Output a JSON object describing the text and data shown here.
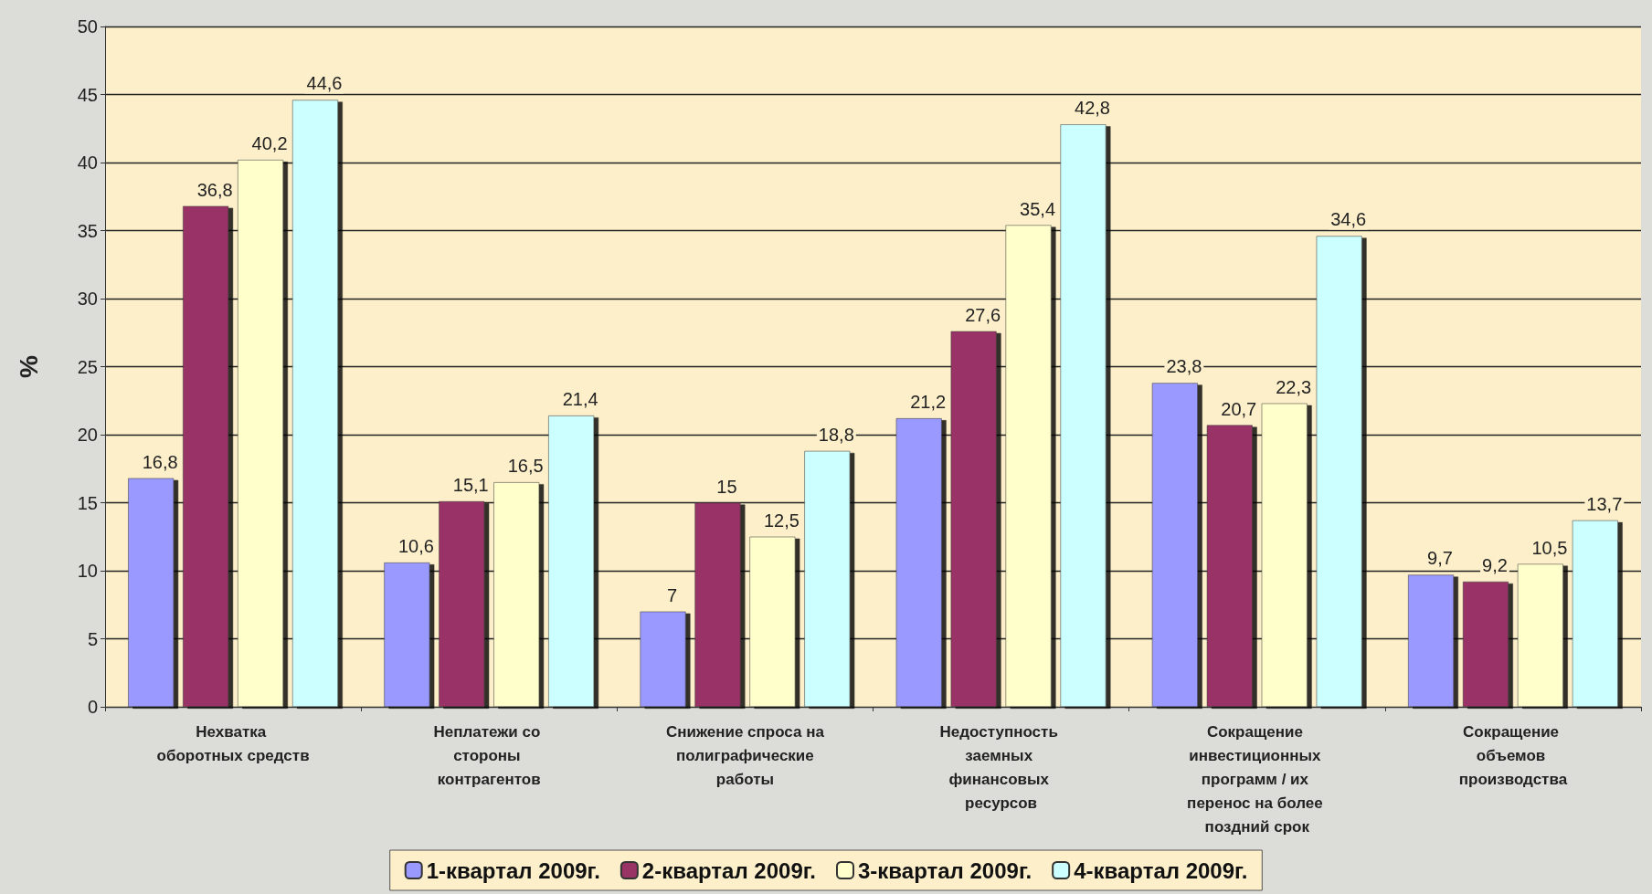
{
  "chart_data": {
    "type": "bar",
    "ylabel": "%",
    "categories": [
      "Нехватка оборотных средств",
      "Неплатежи со стороны контрагентов",
      "Снижение спроса на полиграфические работы",
      "Недоступность заемных финансовых ресурсов",
      "Сокращение инвестиционных программ / их перенос на более поздний срок",
      "Сокращение объемов производства"
    ],
    "series": [
      {
        "name": "1-квартал 2009г.",
        "color": "#9999ff",
        "values": [
          16.8,
          10.6,
          7,
          21.2,
          23.8,
          9.7
        ],
        "value_labels": [
          "16,8",
          "10,6",
          "7",
          "21,2",
          "23,8",
          "9,7"
        ]
      },
      {
        "name": "2-квартал 2009г.",
        "color": "#993366",
        "values": [
          36.8,
          15.1,
          15,
          27.6,
          20.7,
          9.2
        ],
        "value_labels": [
          "36,8",
          "15,1",
          "15",
          "27,6",
          "20,7",
          "9,2"
        ]
      },
      {
        "name": "3-квартал 2009г.",
        "color": "#ffffcc",
        "values": [
          40.2,
          16.5,
          12.5,
          35.4,
          22.3,
          10.5
        ],
        "value_labels": [
          "40,2",
          "16,5",
          "12,5",
          "35,4",
          "22,3",
          "10,5"
        ]
      },
      {
        "name": "4-квартал 2009г.",
        "color": "#ccffff",
        "values": [
          44.6,
          21.4,
          18.8,
          42.8,
          34.6,
          13.7
        ],
        "value_labels": [
          "44,6",
          "21,4",
          "18,8",
          "42,8",
          "34,6",
          "13,7"
        ]
      }
    ],
    "ylim": [
      0,
      50
    ],
    "yticks": [
      0,
      5,
      10,
      15,
      20,
      25,
      30,
      35,
      40,
      45,
      50
    ],
    "grid": "y",
    "legend": "bottom"
  }
}
